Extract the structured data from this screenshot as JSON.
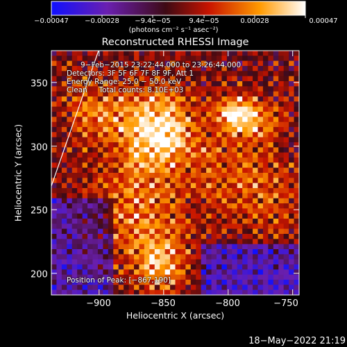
{
  "chart_data": {
    "type": "heatmap",
    "title": "Reconstructed RHESSI Image",
    "xlabel": "Heliocentric X (arcsec)",
    "ylabel": "Heliocentric Y (arcsec)",
    "xlim": [
      -937,
      -745
    ],
    "ylim": [
      183,
      375
    ],
    "xticks": [
      -900,
      -850,
      -800,
      -750
    ],
    "xtick_labels": [
      "−900",
      "−850",
      "−800",
      "−750"
    ],
    "yticks": [
      200,
      250,
      300,
      350
    ],
    "ytick_labels": [
      "200",
      "250",
      "300",
      "350"
    ],
    "colorbar": {
      "min": -0.00047,
      "max": 0.00047,
      "tick_labels": [
        "−0.00047",
        "−0.00028",
        "−9.4e−05",
        "9.4e−05",
        "0.00028",
        "0.00047"
      ],
      "units": "(photons cm⁻² s⁻¹ asec⁻²)",
      "colors": [
        "#1010ff",
        "#6a1fb0",
        "#3d0a14",
        "#c81400",
        "#ff9a00",
        "#ffffff"
      ]
    },
    "peak": {
      "label": "Position of Peak: [−867,190]",
      "x": -867,
      "y": 190
    },
    "sources": [
      {
        "x": -855,
        "y": 312,
        "sigma": 22,
        "amp": 1.0
      },
      {
        "x": -870,
        "y": 245,
        "sigma": 28,
        "amp": 0.55
      },
      {
        "x": -852,
        "y": 205,
        "sigma": 14,
        "amp": 0.65
      },
      {
        "x": -795,
        "y": 325,
        "sigma": 10,
        "amp": 0.85
      },
      {
        "x": -775,
        "y": 320,
        "sigma": 14,
        "amp": 0.5
      },
      {
        "x": -768,
        "y": 260,
        "sigma": 22,
        "amp": 0.35
      },
      {
        "x": -905,
        "y": 330,
        "sigma": 18,
        "amp": 0.45
      },
      {
        "x": -800,
        "y": 280,
        "sigma": 20,
        "amp": 0.3
      }
    ]
  },
  "annotations": {
    "time_range": "9−Feb−2015 23:22:44.000 to 23:26:44.000",
    "detectors": "Detectors: 3F 5F 6F 7F 8F 9F, Att 1",
    "energy": "Energy Range: 25.0 − 50.0 keV",
    "clean": "Clean     Total counts: 8.10E+03"
  },
  "footer": {
    "timestamp": "18−May−2022 21:19"
  }
}
